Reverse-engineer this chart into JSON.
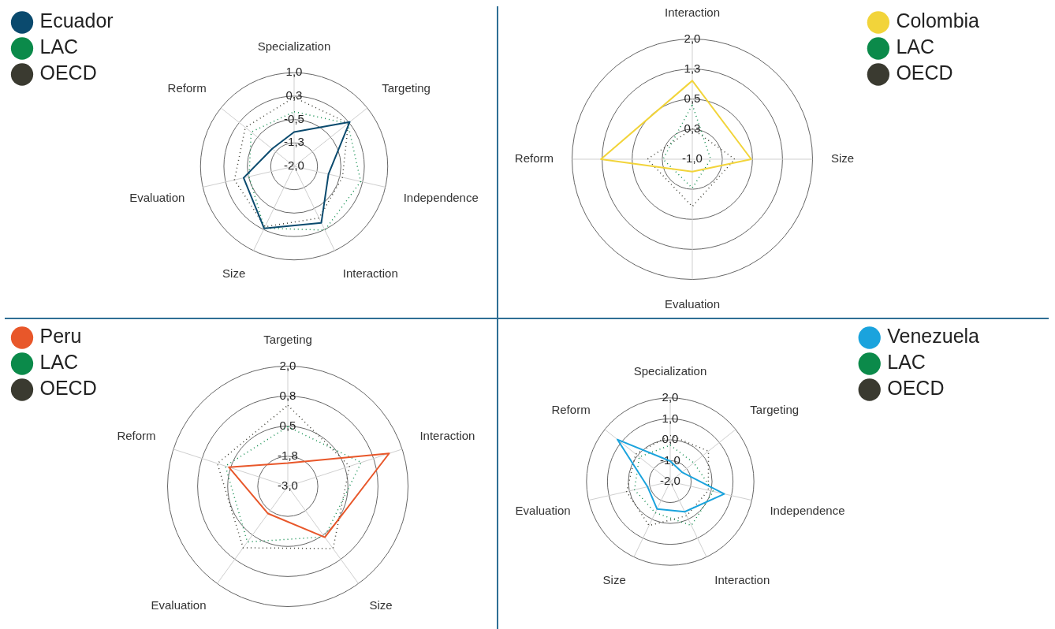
{
  "chart_data": [
    {
      "type": "radar",
      "categories": [
        "Specialization",
        "Targeting",
        "Independence",
        "Interaction",
        "Size",
        "Evaluation",
        "Reform"
      ],
      "ylim": [
        -2,
        1
      ],
      "yticks": [
        {
          "value": -2,
          "label": "-2,0"
        },
        {
          "value": -1.25,
          "label": "-1,3"
        },
        {
          "value": -0.5,
          "label": "-0,5"
        },
        {
          "value": 0.25,
          "label": "0,3"
        },
        {
          "value": 1,
          "label": "1,0"
        }
      ],
      "legend": "top left",
      "grid": true,
      "series": [
        {
          "name": "Ecuador",
          "color": "#0a4a6e",
          "line_style": "solid",
          "values": [
            -0.9,
            0.28,
            -0.87,
            0.01,
            0.21,
            -0.34,
            -1.1
          ]
        },
        {
          "name": "LAC",
          "color": "#0b8a4a",
          "line_style": "dotted",
          "values": [
            -0.25,
            0.2,
            0.19,
            0.27,
            0.2,
            -0.52,
            -0.24
          ]
        },
        {
          "name": "OECD",
          "color": "#3a3a30",
          "line_style": "dotted",
          "values": [
            0.21,
            0.22,
            -0.41,
            -0.16,
            0.15,
            -0.04,
            0.0
          ]
        }
      ]
    },
    {
      "type": "radar",
      "categories": [
        "Interaction",
        "Size",
        "Evaluation",
        "Reform"
      ],
      "ylim": [
        -1,
        2
      ],
      "yticks": [
        {
          "value": -1,
          "label": "-1,0"
        },
        {
          "value": -0.25,
          "label": "0,3"
        },
        {
          "value": 0.5,
          "label": "0,5"
        },
        {
          "value": 1.25,
          "label": "1,3"
        },
        {
          "value": 2,
          "label": "2,0"
        }
      ],
      "legend": "top right",
      "grid": true,
      "series": [
        {
          "name": "Colombia",
          "color": "#f2d43a",
          "line_style": "solid",
          "values": [
            0.96,
            0.47,
            -0.69,
            1.28
          ]
        },
        {
          "name": "LAC",
          "color": "#0b8a4a",
          "line_style": "dotted",
          "values": [
            0.36,
            -0.54,
            -0.28,
            -0.27
          ]
        },
        {
          "name": "OECD",
          "color": "#3a3a30",
          "line_style": "dotted",
          "values": [
            -0.24,
            0.06,
            0.18,
            0.12
          ]
        }
      ]
    },
    {
      "type": "radar",
      "categories": [
        "Targeting",
        "Interaction",
        "Size",
        "Evaluation",
        "Reform"
      ],
      "ylim": [
        -3,
        2
      ],
      "yticks": [
        {
          "value": -3,
          "label": "-3,0"
        },
        {
          "value": -1.75,
          "label": "-1,8"
        },
        {
          "value": -0.5,
          "label": "0,5"
        },
        {
          "value": 0.75,
          "label": "0,8"
        },
        {
          "value": 2,
          "label": "2,0"
        }
      ],
      "legend": "top left",
      "grid": true,
      "series": [
        {
          "name": "Peru",
          "color": "#e8572a",
          "line_style": "solid",
          "values": [
            -2.03,
            1.43,
            -0.38,
            -1.6,
            -0.42
          ]
        },
        {
          "name": "LAC",
          "color": "#0b8a4a",
          "line_style": "dotted",
          "values": [
            -0.52,
            0.21,
            -0.4,
            -0.14,
            -0.27
          ]
        },
        {
          "name": "OECD",
          "color": "#3a3a30",
          "line_style": "dotted",
          "values": [
            0.37,
            -0.3,
            0.2,
            0.16,
            0.08
          ]
        }
      ]
    },
    {
      "type": "radar",
      "categories": [
        "Specialization",
        "Targeting",
        "Independence",
        "Interaction",
        "Size",
        "Evaluation",
        "Reform"
      ],
      "ylim": [
        -2,
        2
      ],
      "yticks": [
        {
          "value": -2,
          "label": "-2,0"
        },
        {
          "value": -1,
          "label": "-1,0"
        },
        {
          "value": 0,
          "label": "0,0"
        },
        {
          "value": 1,
          "label": "1,0"
        },
        {
          "value": 2,
          "label": "2,0"
        }
      ],
      "legend": "top right",
      "grid": true,
      "series": [
        {
          "name": "Venezuela",
          "color": "#1aa3dd",
          "line_style": "solid",
          "values": [
            -1.02,
            -1.28,
            0.65,
            -0.4,
            -0.55,
            -0.89,
            1.23
          ]
        },
        {
          "name": "LAC",
          "color": "#0b8a4a",
          "line_style": "dotted",
          "values": [
            -0.26,
            -0.56,
            0.11,
            0.33,
            -0.35,
            -0.25,
            -0.11
          ]
        },
        {
          "name": "OECD",
          "color": "#3a3a30",
          "line_style": "dotted",
          "values": [
            0.21,
            0.34,
            -0.13,
            -0.19,
            0.33,
            0.14,
            0.11
          ]
        }
      ]
    }
  ]
}
